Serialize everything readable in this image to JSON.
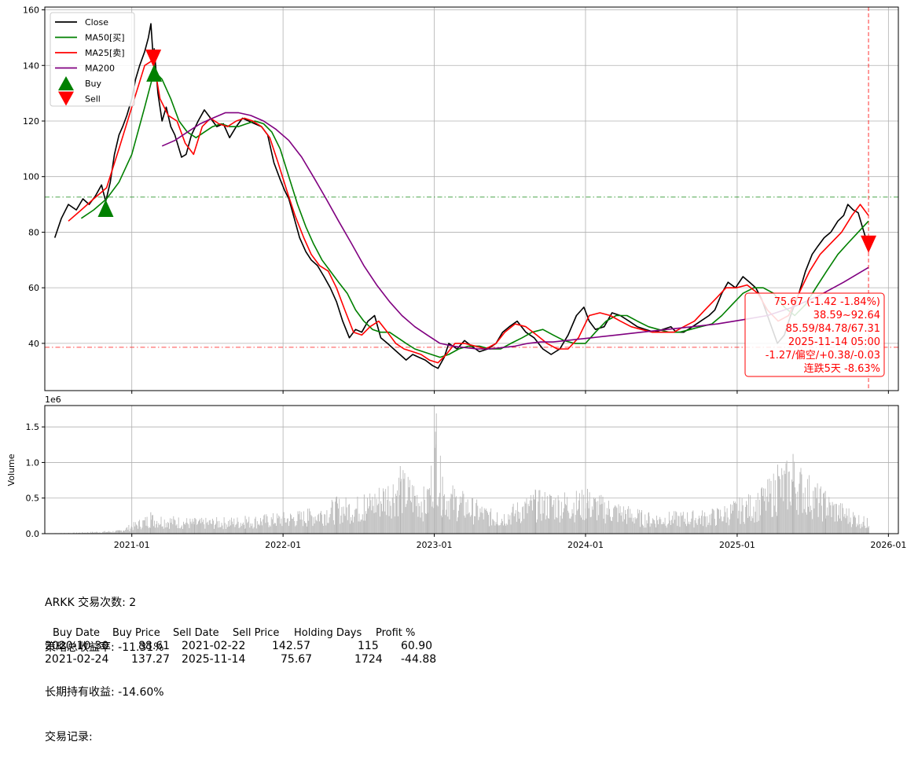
{
  "chart_data": [
    {
      "type": "line",
      "title": "",
      "xlabel": "",
      "ylabel": "",
      "x_ticks": [
        "2021-01",
        "2022-01",
        "2023-01",
        "2024-01",
        "2025-01",
        "2026-01"
      ],
      "y_ticks": [
        40,
        60,
        80,
        100,
        120,
        140,
        160
      ],
      "xlim": [
        "2020-06-05",
        "2026-01-25"
      ],
      "ylim": [
        23,
        161
      ],
      "grid": true,
      "legend_position": "top-left",
      "legend": [
        "Close",
        "MA50[买]",
        "MA25[卖]",
        "MA200",
        "Buy",
        "Sell"
      ],
      "colors": {
        "Close": "#000000",
        "MA50": "#008000",
        "MA25": "#ff0000",
        "MA200": "#800080",
        "Buy": "#008000",
        "Sell": "#ff0000",
        "annotation": "#ff0000"
      },
      "series": [
        {
          "name": "Close",
          "x": [
            "2020-06-29",
            "2020-07-15",
            "2020-08-01",
            "2020-08-20",
            "2020-09-05",
            "2020-09-20",
            "2020-10-05",
            "2020-10-20",
            "2020-10-30",
            "2020-11-10",
            "2020-11-20",
            "2020-12-01",
            "2020-12-10",
            "2020-12-20",
            "2021-01-01",
            "2021-01-10",
            "2021-01-20",
            "2021-02-01",
            "2021-02-10",
            "2021-02-16",
            "2021-02-22",
            "2021-02-24",
            "2021-03-05",
            "2021-03-15",
            "2021-03-25",
            "2021-04-05",
            "2021-04-15",
            "2021-05-01",
            "2021-05-12",
            "2021-05-25",
            "2021-06-10",
            "2021-06-25",
            "2021-07-10",
            "2021-07-25",
            "2021-08-10",
            "2021-08-25",
            "2021-09-10",
            "2021-09-25",
            "2021-10-10",
            "2021-10-25",
            "2021-11-10",
            "2021-11-25",
            "2021-12-10",
            "2021-12-25",
            "2022-01-05",
            "2022-01-15",
            "2022-01-28",
            "2022-02-10",
            "2022-02-25",
            "2022-03-10",
            "2022-03-25",
            "2022-04-10",
            "2022-04-25",
            "2022-05-10",
            "2022-05-25",
            "2022-06-10",
            "2022-06-25",
            "2022-07-10",
            "2022-07-25",
            "2022-08-10",
            "2022-08-25",
            "2022-09-10",
            "2022-09-25",
            "2022-10-10",
            "2022-10-25",
            "2022-11-10",
            "2022-11-25",
            "2022-12-10",
            "2022-12-28",
            "2023-01-10",
            "2023-01-25",
            "2023-02-05",
            "2023-02-25",
            "2023-03-15",
            "2023-04-01",
            "2023-04-20",
            "2023-05-10",
            "2023-05-30",
            "2023-06-15",
            "2023-07-01",
            "2023-07-20",
            "2023-08-10",
            "2023-08-30",
            "2023-09-20",
            "2023-10-10",
            "2023-10-31",
            "2023-11-20",
            "2023-12-10",
            "2023-12-28",
            "2024-01-10",
            "2024-01-25",
            "2024-02-15",
            "2024-03-05",
            "2024-03-25",
            "2024-04-15",
            "2024-05-05",
            "2024-05-25",
            "2024-06-15",
            "2024-07-05",
            "2024-07-25",
            "2024-08-07",
            "2024-08-25",
            "2024-09-15",
            "2024-10-05",
            "2024-10-25",
            "2024-11-08",
            "2024-11-25",
            "2024-12-10",
            "2024-12-28",
            "2025-01-15",
            "2025-01-31",
            "2025-02-15",
            "2025-03-01",
            "2025-03-20",
            "2025-04-08",
            "2025-04-25",
            "2025-05-10",
            "2025-05-30",
            "2025-06-15",
            "2025-07-01",
            "2025-07-15",
            "2025-07-30",
            "2025-08-15",
            "2025-09-01",
            "2025-09-15",
            "2025-09-25",
            "2025-10-08",
            "2025-10-20",
            "2025-10-30",
            "2025-11-07",
            "2025-11-14"
          ],
          "y": [
            78,
            85,
            90,
            88,
            92,
            90,
            93,
            97,
            91,
            98,
            108,
            115,
            118,
            122,
            128,
            135,
            140,
            145,
            150,
            155,
            142,
            146,
            130,
            120,
            125,
            118,
            115,
            107,
            108,
            115,
            120,
            124,
            121,
            118,
            119,
            114,
            118,
            121,
            120,
            119,
            118,
            115,
            105,
            99,
            95,
            92,
            85,
            78,
            73,
            70,
            68,
            64,
            60,
            55,
            48,
            42,
            45,
            44,
            48,
            50,
            42,
            40,
            38,
            36,
            34,
            36,
            35,
            34,
            32,
            31,
            35,
            40,
            38,
            41,
            39,
            37,
            38,
            40,
            44,
            46,
            48,
            44,
            42,
            38,
            36,
            38,
            43,
            50,
            53,
            48,
            45,
            46,
            51,
            50,
            48,
            46,
            45,
            44,
            45,
            46,
            44,
            44,
            46,
            48,
            50,
            52,
            58,
            62,
            60,
            64,
            62,
            60,
            56,
            48,
            40,
            43,
            50,
            58,
            66,
            72,
            75,
            78,
            80,
            84,
            86,
            90,
            88,
            87,
            82,
            78,
            75.67
          ]
        },
        {
          "name": "MA50[买]",
          "x": [
            "2020-09-01",
            "2020-10-01",
            "2020-11-01",
            "2020-12-01",
            "2021-01-01",
            "2021-02-01",
            "2021-02-24",
            "2021-03-15",
            "2021-04-05",
            "2021-04-25",
            "2021-05-15",
            "2021-06-05",
            "2021-06-25",
            "2021-07-15",
            "2021-08-05",
            "2021-08-25",
            "2021-09-15",
            "2021-10-05",
            "2021-10-25",
            "2021-11-15",
            "2021-12-05",
            "2021-12-25",
            "2022-01-15",
            "2022-02-05",
            "2022-02-25",
            "2022-03-15",
            "2022-04-05",
            "2022-04-25",
            "2022-05-15",
            "2022-06-05",
            "2022-06-25",
            "2022-07-15",
            "2022-08-05",
            "2022-08-25",
            "2022-09-15",
            "2022-10-05",
            "2022-10-25",
            "2022-11-15",
            "2022-12-05",
            "2022-12-25",
            "2023-01-15",
            "2023-02-05",
            "2023-03-01",
            "2023-03-25",
            "2023-04-20",
            "2023-05-15",
            "2023-06-10",
            "2023-07-05",
            "2023-08-01",
            "2023-08-25",
            "2023-09-20",
            "2023-10-15",
            "2023-11-10",
            "2023-12-05",
            "2024-01-01",
            "2024-01-25",
            "2024-02-20",
            "2024-03-15",
            "2024-04-10",
            "2024-05-05",
            "2024-06-01",
            "2024-06-25",
            "2024-07-20",
            "2024-08-15",
            "2024-09-10",
            "2024-10-05",
            "2024-11-01",
            "2024-11-25",
            "2024-12-20",
            "2025-01-15",
            "2025-02-10",
            "2025-03-05",
            "2025-03-30",
            "2025-04-25",
            "2025-05-20",
            "2025-06-15",
            "2025-07-10",
            "2025-08-05",
            "2025-09-01",
            "2025-09-25",
            "2025-10-20",
            "2025-11-14"
          ],
          "y": [
            85,
            88,
            92,
            98,
            108,
            125,
            138,
            135,
            128,
            120,
            116,
            114,
            116,
            118,
            119,
            118,
            118,
            119,
            120,
            119,
            116,
            110,
            100,
            90,
            82,
            76,
            70,
            66,
            62,
            58,
            52,
            48,
            45,
            44,
            44,
            42,
            40,
            38,
            37,
            36,
            35,
            36,
            38,
            39,
            39,
            38,
            38,
            40,
            42,
            44,
            45,
            43,
            41,
            40,
            40,
            44,
            48,
            50,
            50,
            48,
            46,
            45,
            44,
            44,
            45,
            46,
            47,
            50,
            54,
            58,
            60,
            60,
            58,
            53,
            50,
            54,
            60,
            66,
            72,
            76,
            80,
            84
          ]
        },
        {
          "name": "MA25[卖]",
          "x": [
            "2020-08-01",
            "2020-09-01",
            "2020-10-01",
            "2020-11-01",
            "2020-12-01",
            "2021-01-01",
            "2021-02-01",
            "2021-02-22",
            "2021-03-10",
            "2021-03-30",
            "2021-04-20",
            "2021-05-10",
            "2021-05-30",
            "2021-06-20",
            "2021-07-10",
            "2021-07-30",
            "2021-08-20",
            "2021-09-10",
            "2021-09-30",
            "2021-10-20",
            "2021-11-10",
            "2021-11-30",
            "2021-12-20",
            "2022-01-10",
            "2022-01-30",
            "2022-02-20",
            "2022-03-10",
            "2022-03-30",
            "2022-04-20",
            "2022-05-10",
            "2022-05-30",
            "2022-06-20",
            "2022-07-10",
            "2022-07-30",
            "2022-08-20",
            "2022-09-10",
            "2022-09-30",
            "2022-10-20",
            "2022-11-10",
            "2022-11-30",
            "2022-12-20",
            "2023-01-10",
            "2023-01-30",
            "2023-02-20",
            "2023-03-15",
            "2023-04-10",
            "2023-05-05",
            "2023-05-30",
            "2023-06-20",
            "2023-07-15",
            "2023-08-10",
            "2023-09-05",
            "2023-09-30",
            "2023-10-25",
            "2023-11-20",
            "2023-12-15",
            "2024-01-10",
            "2024-02-05",
            "2024-03-01",
            "2024-03-25",
            "2024-04-20",
            "2024-05-15",
            "2024-06-10",
            "2024-07-05",
            "2024-08-01",
            "2024-08-25",
            "2024-09-20",
            "2024-10-15",
            "2024-11-10",
            "2024-12-05",
            "2024-12-30",
            "2025-01-25",
            "2025-02-20",
            "2025-03-15",
            "2025-04-10",
            "2025-05-05",
            "2025-05-30",
            "2025-06-25",
            "2025-07-20",
            "2025-08-15",
            "2025-09-10",
            "2025-10-05",
            "2025-10-25",
            "2025-11-14"
          ],
          "y": [
            84,
            88,
            92,
            96,
            110,
            125,
            140,
            142,
            128,
            122,
            120,
            112,
            108,
            118,
            121,
            119,
            118,
            120,
            121,
            120,
            118,
            114,
            105,
            95,
            86,
            78,
            72,
            68,
            66,
            60,
            52,
            44,
            43,
            46,
            48,
            44,
            40,
            38,
            37,
            36,
            34,
            33,
            36,
            40,
            40,
            39,
            38,
            40,
            44,
            47,
            46,
            43,
            40,
            38,
            38,
            42,
            50,
            51,
            50,
            48,
            46,
            45,
            44,
            44,
            44,
            46,
            48,
            52,
            56,
            60,
            60,
            61,
            58,
            52,
            48,
            50,
            58,
            66,
            72,
            76,
            80,
            86,
            90,
            86
          ]
        },
        {
          "name": "MA200",
          "x": [
            "2021-03-15",
            "2021-04-15",
            "2021-05-15",
            "2021-06-15",
            "2021-07-15",
            "2021-08-15",
            "2021-09-15",
            "2021-10-15",
            "2021-11-15",
            "2021-12-15",
            "2022-01-15",
            "2022-02-15",
            "2022-03-15",
            "2022-04-15",
            "2022-05-15",
            "2022-06-15",
            "2022-07-15",
            "2022-08-15",
            "2022-09-15",
            "2022-10-15",
            "2022-11-15",
            "2022-12-15",
            "2023-01-15",
            "2023-02-15",
            "2023-03-15",
            "2023-04-15",
            "2023-05-15",
            "2023-06-15",
            "2023-07-15",
            "2023-08-15",
            "2023-09-15",
            "2023-10-15",
            "2023-11-15",
            "2023-12-15",
            "2024-01-15",
            "2024-03-15",
            "2024-05-15",
            "2024-07-15",
            "2024-09-15",
            "2024-11-15",
            "2025-01-15",
            "2025-03-15",
            "2025-05-15",
            "2025-07-15",
            "2025-09-15",
            "2025-11-14"
          ],
          "y": [
            111,
            113,
            116,
            119,
            121,
            123,
            123,
            122,
            120,
            117,
            113,
            107,
            100,
            92,
            84,
            76,
            68,
            61,
            55,
            50,
            46,
            43,
            40,
            39,
            38.5,
            38,
            38,
            38.5,
            39,
            40,
            40.5,
            40.5,
            41,
            41.5,
            42,
            43,
            44,
            45,
            46,
            47,
            48.5,
            50,
            53,
            57,
            62,
            67.3
          ]
        }
      ],
      "signals": [
        {
          "type": "Buy",
          "date": "2020-10-30",
          "price": 88.61
        },
        {
          "type": "Sell",
          "date": "2021-02-22",
          "price": 142.57
        },
        {
          "type": "Buy",
          "date": "2021-02-24",
          "price": 137.27
        },
        {
          "type": "Sell",
          "date": "2025-11-14",
          "price": 75.67
        }
      ],
      "reference_lines": {
        "horizontal": [
          92.64,
          38.59
        ],
        "vertical": [
          "2025-11-14"
        ]
      }
    },
    {
      "type": "bar",
      "ylabel": "Volume",
      "y_scale_label": "1e6",
      "y_ticks": [
        "0.0",
        "0.5",
        "1.0",
        "1.5"
      ],
      "ylim": [
        0,
        1.8
      ],
      "x_ticks": [
        "2021-01",
        "2022-01",
        "2023-01",
        "2024-01",
        "2025-01",
        "2026-01"
      ],
      "grid": true,
      "volume_samples_1e6": [
        {
          "date": "2020-08-01",
          "value": 0.01
        },
        {
          "date": "2020-12-01",
          "value": 0.05
        },
        {
          "date": "2021-02-15",
          "value": 0.3
        },
        {
          "date": "2021-06-01",
          "value": 0.22
        },
        {
          "date": "2021-10-01",
          "value": 0.25
        },
        {
          "date": "2022-03-01",
          "value": 0.35
        },
        {
          "date": "2022-05-10",
          "value": 0.52
        },
        {
          "date": "2022-07-15",
          "value": 0.55
        },
        {
          "date": "2022-10-10",
          "value": 0.95
        },
        {
          "date": "2022-12-15",
          "value": 0.63
        },
        {
          "date": "2023-01-05",
          "value": 1.69
        },
        {
          "date": "2023-01-20",
          "value": 0.8
        },
        {
          "date": "2023-06-01",
          "value": 0.3
        },
        {
          "date": "2023-09-01",
          "value": 0.62
        },
        {
          "date": "2024-01-05",
          "value": 0.63
        },
        {
          "date": "2024-06-01",
          "value": 0.3
        },
        {
          "date": "2024-11-01",
          "value": 0.35
        },
        {
          "date": "2025-03-01",
          "value": 0.65
        },
        {
          "date": "2025-04-08",
          "value": 0.97
        },
        {
          "date": "2025-05-15",
          "value": 1.12
        },
        {
          "date": "2025-08-01",
          "value": 0.6
        },
        {
          "date": "2025-11-10",
          "value": 0.22
        }
      ]
    }
  ],
  "annotation": {
    "lines": [
      "75.67 (-1.42 -1.84%)",
      "38.59~92.64",
      "85.59/84.78/67.31",
      "2025-11-14 05:00",
      "-1.27/偏空/+0.38/-0.03",
      "连跌5天 -8.63%"
    ]
  },
  "summary": {
    "trades_line": "ARKK 交易次数: 2",
    "strategy_line": "策略总收益率: -11.31%",
    "hold_line": "长期持有收益: -14.60%",
    "records_label": "交易记录:"
  },
  "table": {
    "headers": [
      "Buy Date",
      "Buy Price",
      "Sell Date",
      "Sell Price",
      "Holding Days",
      "Profit %"
    ],
    "rows": [
      [
        "2020-10-30",
        "88.61",
        "2021-02-22",
        "142.57",
        "115",
        "60.90"
      ],
      [
        "2021-02-24",
        "137.27",
        "2025-11-14",
        "75.67",
        "1724",
        "-44.88"
      ]
    ]
  }
}
